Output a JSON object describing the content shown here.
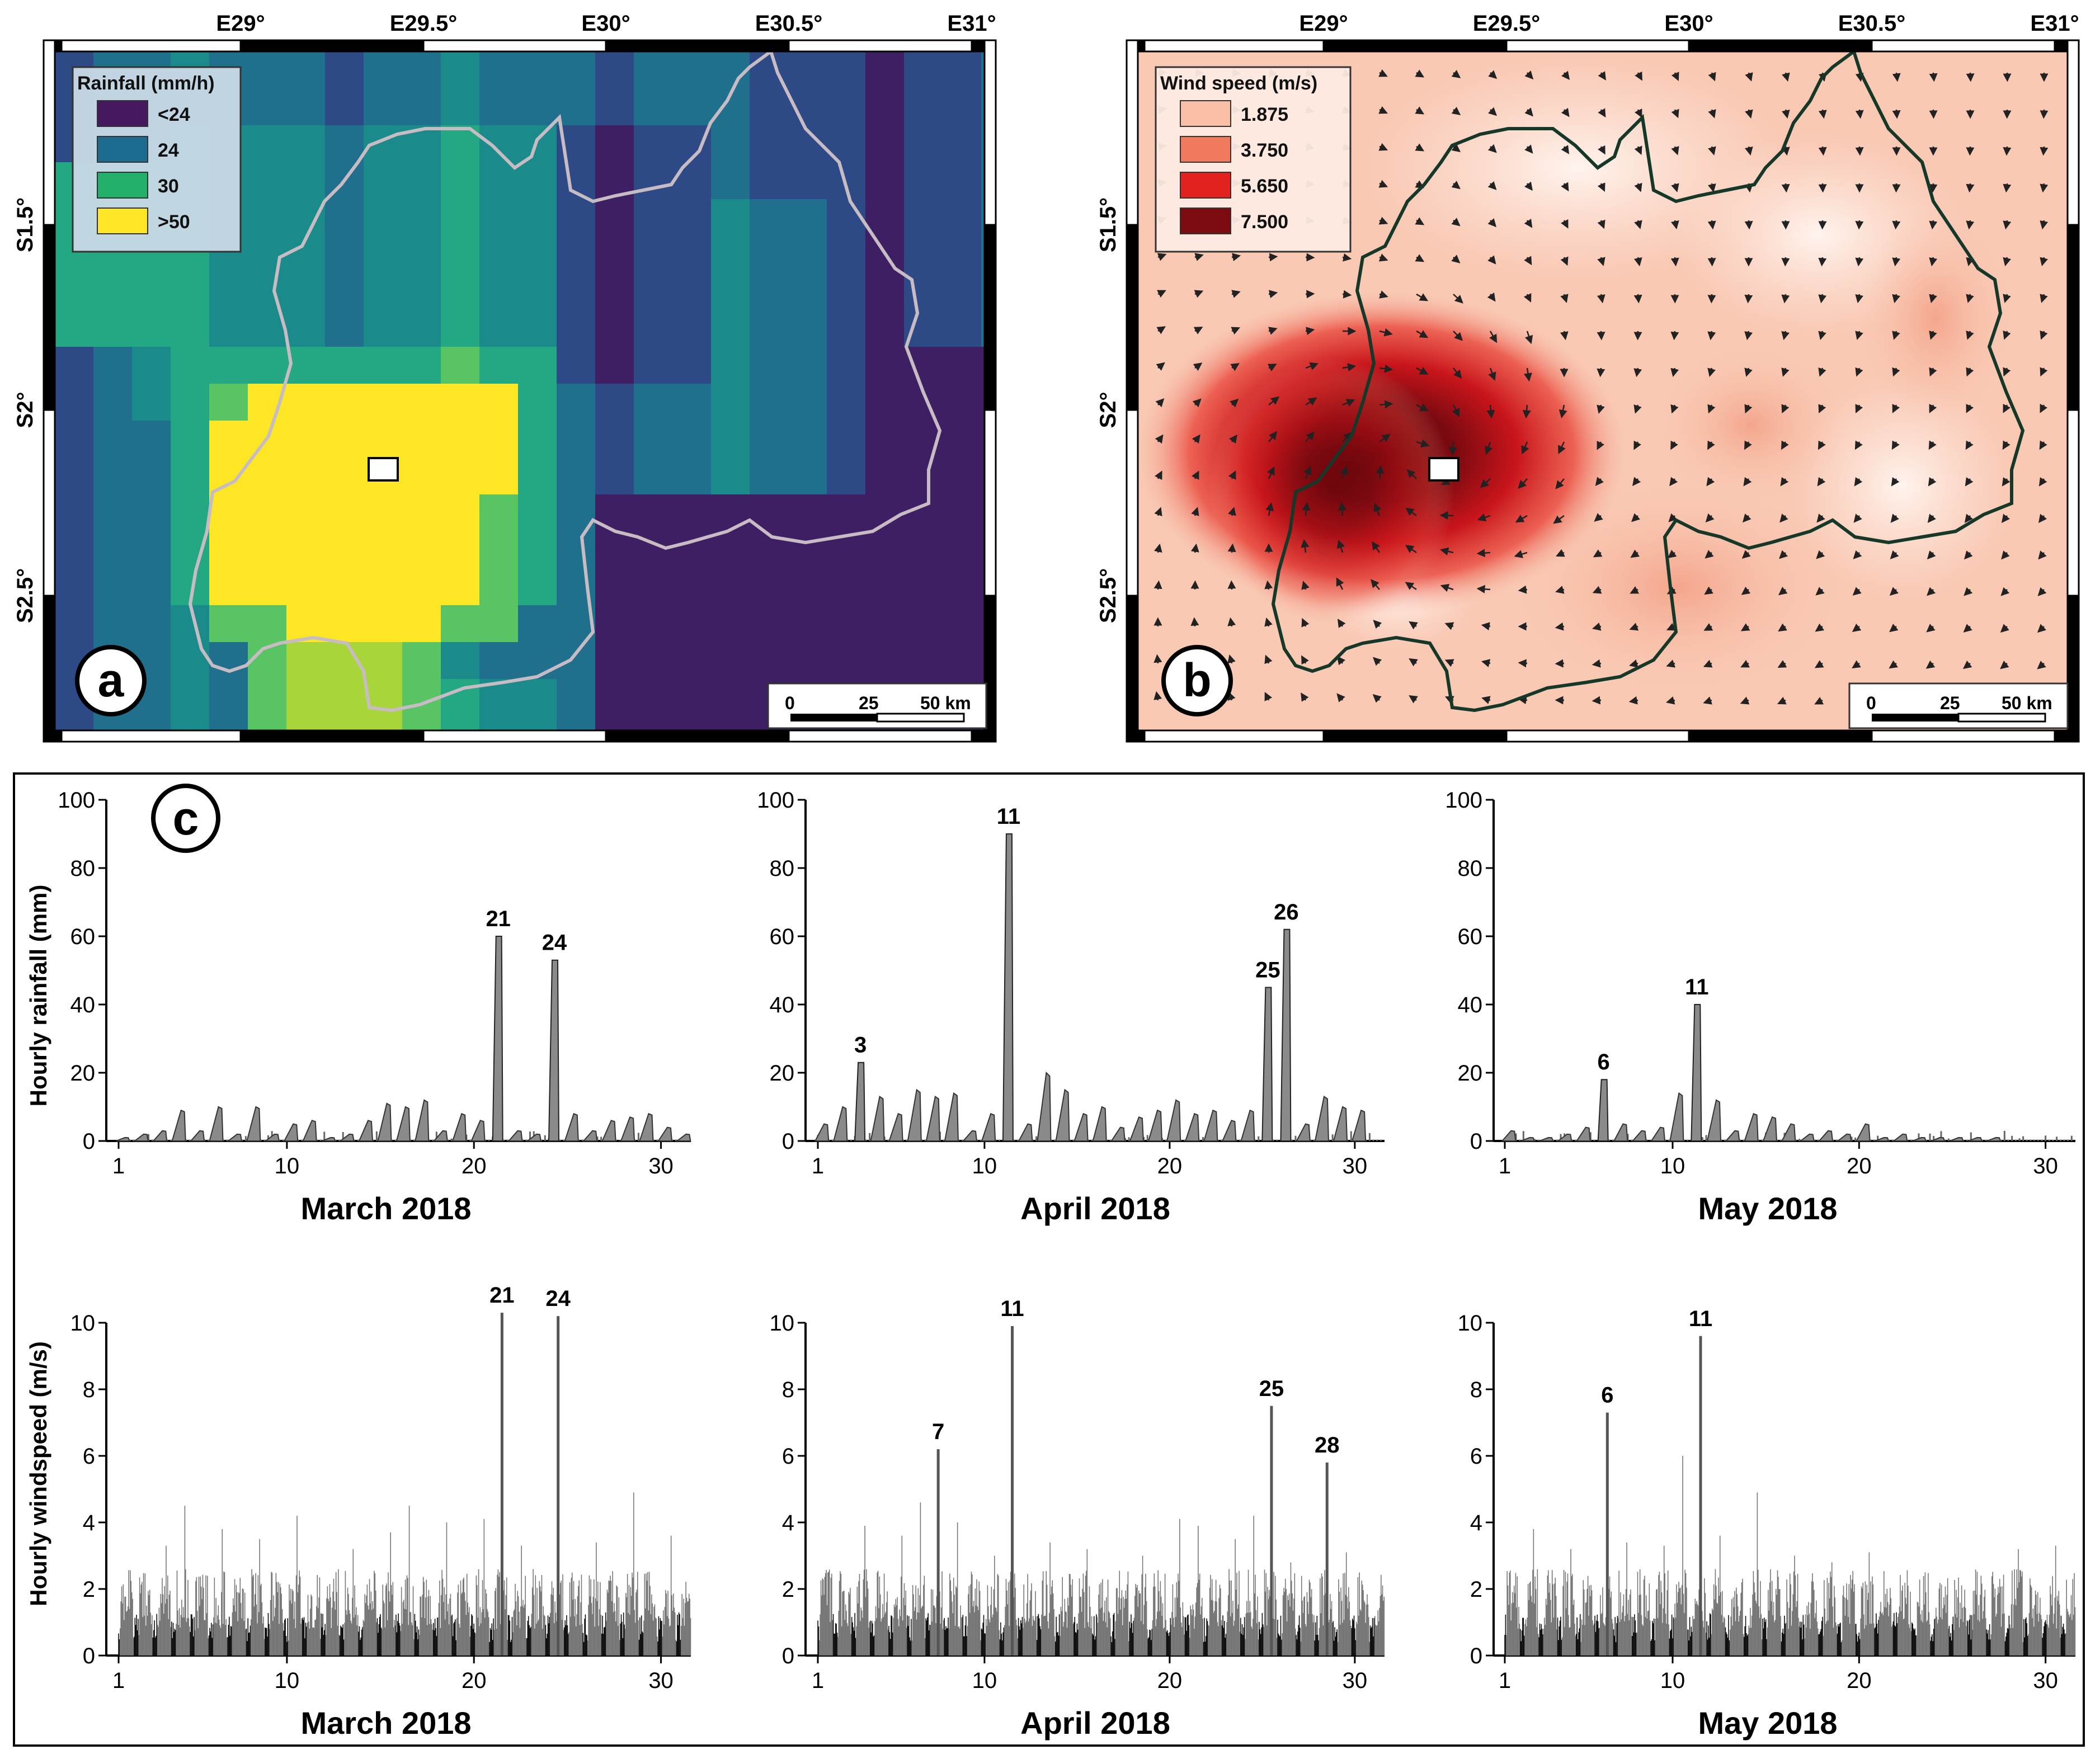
{
  "map_a": {
    "label": "a",
    "legend_title": "Rainfall (mm/h)",
    "legend_items": [
      {
        "label": "<24",
        "color": "#46185f"
      },
      {
        "label": "24",
        "color": "#1d6b8e"
      },
      {
        "label": "30",
        "color": "#23b06a"
      },
      {
        "label": ">50",
        "color": "#fde725"
      }
    ],
    "lon_ticks": [
      "E29°",
      "E29.5°",
      "E30°",
      "E30.5°",
      "E31°"
    ],
    "lat_ticks": [
      "S1.5°",
      "S2°",
      "S2.5°"
    ],
    "scale_labels": [
      "0",
      "25",
      "50 km"
    ]
  },
  "map_b": {
    "label": "b",
    "legend_title": "Wind speed (m/s)",
    "legend_items": [
      {
        "label": "1.875",
        "color": "#f8bfa6"
      },
      {
        "label": "3.750",
        "color": "#f27a5c"
      },
      {
        "label": "5.650",
        "color": "#e3211f"
      },
      {
        "label": "7.500",
        "color": "#7c0a10"
      }
    ],
    "lon_ticks": [
      "E29°",
      "E29.5°",
      "E30°",
      "E30.5°",
      "E31°"
    ],
    "lat_ticks": [
      "S1.5°",
      "S2°",
      "S2.5°"
    ],
    "scale_labels": [
      "0",
      "25",
      "50 km"
    ]
  },
  "panel_c": {
    "label": "c",
    "rain_ylabel": "Hourly rainfall (mm)",
    "wind_ylabel": "Hourly windspeed (m/s)"
  },
  "chart_data": [
    {
      "type": "bar",
      "title": "March 2018",
      "series": "Hourly rainfall",
      "ylabel": "Hourly rainfall (mm)",
      "ylim": [
        0,
        100
      ],
      "yticks": [
        0,
        20,
        40,
        60,
        80,
        100
      ],
      "xticks": [
        1,
        10,
        20,
        30
      ],
      "xlim": [
        1,
        31
      ],
      "peaks": [
        {
          "day": 21,
          "value": 60,
          "label": "21"
        },
        {
          "day": 24,
          "value": 53,
          "label": "24"
        }
      ],
      "minor": [
        [
          1,
          1
        ],
        [
          2,
          2
        ],
        [
          3,
          3
        ],
        [
          4,
          9
        ],
        [
          5,
          3
        ],
        [
          6,
          10
        ],
        [
          7,
          2
        ],
        [
          8,
          10
        ],
        [
          9,
          2
        ],
        [
          10,
          5
        ],
        [
          11,
          6
        ],
        [
          12,
          1
        ],
        [
          13,
          2
        ],
        [
          14,
          6
        ],
        [
          15,
          11
        ],
        [
          16,
          10
        ],
        [
          17,
          12
        ],
        [
          18,
          3
        ],
        [
          19,
          8
        ],
        [
          20,
          6
        ],
        [
          22,
          3
        ],
        [
          23,
          2
        ],
        [
          25,
          8
        ],
        [
          26,
          3
        ],
        [
          27,
          6
        ],
        [
          28,
          7
        ],
        [
          29,
          8
        ],
        [
          30,
          4
        ],
        [
          31,
          2
        ]
      ]
    },
    {
      "type": "bar",
      "title": "April 2018",
      "series": "Hourly rainfall",
      "ylabel": "Hourly rainfall (mm)",
      "ylim": [
        0,
        100
      ],
      "yticks": [
        0,
        20,
        40,
        60,
        80,
        100
      ],
      "xticks": [
        1,
        10,
        20,
        30
      ],
      "xlim": [
        1,
        31
      ],
      "peaks": [
        {
          "day": 3,
          "value": 23,
          "label": "3"
        },
        {
          "day": 11,
          "value": 90,
          "label": "11"
        },
        {
          "day": 25,
          "value": 45,
          "label": "25"
        },
        {
          "day": 26,
          "value": 62,
          "label": "26"
        }
      ],
      "minor": [
        [
          1,
          5
        ],
        [
          2,
          10
        ],
        [
          4,
          13
        ],
        [
          5,
          8
        ],
        [
          6,
          15
        ],
        [
          7,
          13
        ],
        [
          8,
          14
        ],
        [
          9,
          3
        ],
        [
          10,
          8
        ],
        [
          12,
          5
        ],
        [
          13,
          20
        ],
        [
          14,
          15
        ],
        [
          15,
          8
        ],
        [
          16,
          10
        ],
        [
          17,
          4
        ],
        [
          18,
          7
        ],
        [
          19,
          9
        ],
        [
          20,
          12
        ],
        [
          21,
          8
        ],
        [
          22,
          9
        ],
        [
          23,
          6
        ],
        [
          24,
          9
        ],
        [
          27,
          5
        ],
        [
          28,
          13
        ],
        [
          29,
          10
        ],
        [
          30,
          9
        ]
      ]
    },
    {
      "type": "bar",
      "title": "May 2018",
      "series": "Hourly rainfall",
      "ylabel": "Hourly rainfall (mm)",
      "ylim": [
        0,
        100
      ],
      "yticks": [
        0,
        20,
        40,
        60,
        80,
        100
      ],
      "xticks": [
        1,
        10,
        20,
        30
      ],
      "xlim": [
        1,
        31
      ],
      "peaks": [
        {
          "day": 6,
          "value": 18,
          "label": "6"
        },
        {
          "day": 11,
          "value": 40,
          "label": "11"
        }
      ],
      "minor": [
        [
          1,
          3
        ],
        [
          2,
          1
        ],
        [
          3,
          1
        ],
        [
          4,
          2
        ],
        [
          5,
          4
        ],
        [
          7,
          5
        ],
        [
          8,
          3
        ],
        [
          9,
          4
        ],
        [
          10,
          14
        ],
        [
          12,
          12
        ],
        [
          13,
          3
        ],
        [
          14,
          8
        ],
        [
          15,
          7
        ],
        [
          16,
          5
        ],
        [
          17,
          2
        ],
        [
          18,
          3
        ],
        [
          19,
          2
        ],
        [
          20,
          5
        ],
        [
          21,
          1
        ],
        [
          22,
          2
        ],
        [
          23,
          1
        ],
        [
          24,
          1
        ],
        [
          25,
          1
        ],
        [
          26,
          1
        ],
        [
          27,
          1
        ]
      ]
    },
    {
      "type": "bar",
      "title": "March 2018",
      "series": "Hourly windspeed",
      "ylabel": "Hourly windspeed (m/s)",
      "ylim": [
        0,
        10
      ],
      "yticks": [
        0,
        2,
        4,
        6,
        8,
        10
      ],
      "xticks": [
        1,
        10,
        20,
        30
      ],
      "xlim": [
        1,
        31
      ],
      "peaks": [
        {
          "day": 21,
          "value": 10.3,
          "label": "21"
        },
        {
          "day": 24,
          "value": 10.2,
          "label": "24"
        }
      ],
      "minor": [
        [
          3,
          3.3
        ],
        [
          4,
          4.5
        ],
        [
          6,
          3.8
        ],
        [
          8,
          3.5
        ],
        [
          10,
          4.2
        ],
        [
          13,
          3.2
        ],
        [
          15,
          3.7
        ],
        [
          16,
          4.5
        ],
        [
          18,
          4.0
        ],
        [
          20,
          4.1
        ],
        [
          22,
          3.3
        ],
        [
          26,
          3.4
        ],
        [
          28,
          4.9
        ],
        [
          30,
          3.6
        ]
      ]
    },
    {
      "type": "bar",
      "title": "April 2018",
      "series": "Hourly windspeed",
      "ylabel": "Hourly windspeed (m/s)",
      "ylim": [
        0,
        10
      ],
      "yticks": [
        0,
        2,
        4,
        6,
        8,
        10
      ],
      "xticks": [
        1,
        10,
        20,
        30
      ],
      "xlim": [
        1,
        31
      ],
      "peaks": [
        {
          "day": 7,
          "value": 6.2,
          "label": "7"
        },
        {
          "day": 11,
          "value": 9.9,
          "label": "11"
        },
        {
          "day": 25,
          "value": 7.5,
          "label": "25"
        },
        {
          "day": 28,
          "value": 5.8,
          "label": "28"
        }
      ],
      "minor": [
        [
          3,
          3.9
        ],
        [
          5,
          3.6
        ],
        [
          6,
          4.6
        ],
        [
          8,
          4.0
        ],
        [
          10,
          3.0
        ],
        [
          13,
          3.4
        ],
        [
          15,
          3.2
        ],
        [
          18,
          3.0
        ],
        [
          20,
          4.1
        ],
        [
          21,
          3.9
        ],
        [
          23,
          3.5
        ],
        [
          24,
          4.2
        ],
        [
          26,
          2.8
        ],
        [
          29,
          3.1
        ]
      ]
    },
    {
      "type": "bar",
      "title": "May 2018",
      "series": "Hourly windspeed",
      "ylabel": "Hourly windspeed (m/s)",
      "ylim": [
        0,
        10
      ],
      "yticks": [
        0,
        2,
        4,
        6,
        8,
        10
      ],
      "xticks": [
        1,
        10,
        20,
        30
      ],
      "xlim": [
        1,
        31
      ],
      "peaks": [
        {
          "day": 6,
          "value": 7.3,
          "label": "6"
        },
        {
          "day": 11,
          "value": 9.6,
          "label": "11"
        }
      ],
      "minor": [
        [
          2,
          3.8
        ],
        [
          4,
          3.2
        ],
        [
          7,
          3.4
        ],
        [
          9,
          3.3
        ],
        [
          10,
          6.0
        ],
        [
          12,
          3.6
        ],
        [
          14,
          4.9
        ],
        [
          16,
          3.0
        ],
        [
          18,
          2.8
        ],
        [
          20,
          3.1
        ],
        [
          23,
          2.5
        ],
        [
          26,
          2.4
        ],
        [
          28,
          3.2
        ],
        [
          30,
          3.3
        ]
      ]
    }
  ]
}
